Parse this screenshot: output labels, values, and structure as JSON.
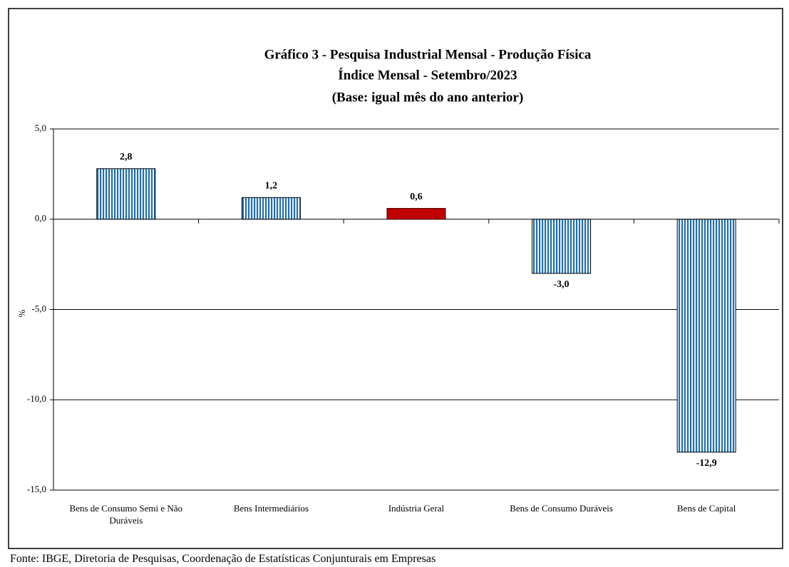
{
  "chart_data": {
    "type": "bar",
    "title": [
      "Gráfico 3 - Pesquisa Industrial Mensal - Produção Física",
      "Índice Mensal - Setembro/2023",
      "(Base: igual mês do ano anterior)"
    ],
    "ylabel": "%",
    "source": "Fonte: IBGE, Diretoria de Pesquisas, Coordenação de Estatísticas Conjunturais em Empresas",
    "categories": [
      "Bens de Consumo Semi e Não Duráveis",
      "Bens Intermediários",
      "Indústria Geral",
      "Bens de Consumo Duráveis",
      "Bens de Capital"
    ],
    "values": [
      2.8,
      1.2,
      0.6,
      -3.0,
      -12.9
    ],
    "value_labels": [
      "2,8",
      "1,2",
      "0,6",
      "-3,0",
      "-12,9"
    ],
    "colors": [
      "#1f6fb5",
      "#1f6fb5",
      "#c00000",
      "#1f6fb5",
      "#1f6fb5"
    ],
    "striped": [
      true,
      true,
      false,
      true,
      true
    ],
    "ylim": [
      -15,
      5
    ],
    "yticks": [
      {
        "value": 5,
        "label": "5,0"
      },
      {
        "value": 0,
        "label": "0,0"
      },
      {
        "value": -5,
        "label": "-5,0"
      },
      {
        "value": -10,
        "label": "-10,0"
      },
      {
        "value": -15,
        "label": "-15,0"
      }
    ],
    "grid": true
  }
}
